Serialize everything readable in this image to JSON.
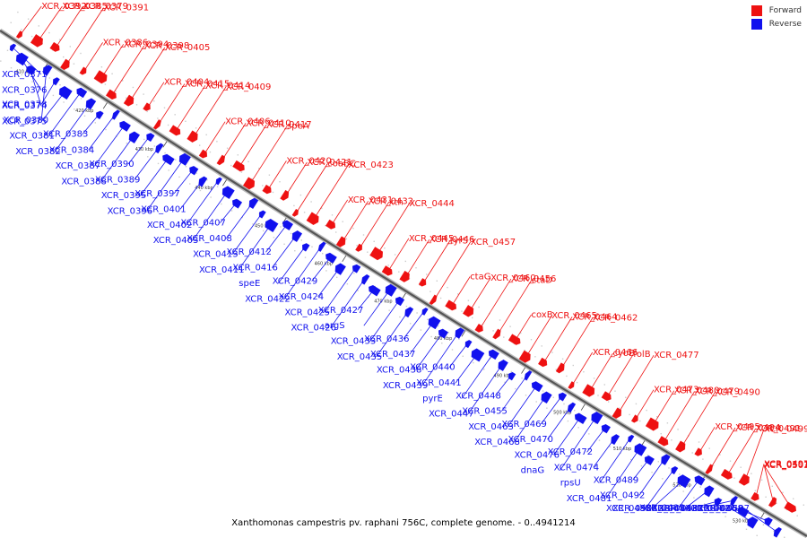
{
  "legend": {
    "forward": {
      "label": "Forward",
      "color": "#ee1111"
    },
    "reverse": {
      "label": "Reverse",
      "color": "#1111ee"
    }
  },
  "caption": "Xanthomonas campestris pv. raphani 756C, complete genome. - 0..4941214",
  "ticks": [
    "410 kbp",
    "420 kbp",
    "430 kbp",
    "440 kbp",
    "450 kbp",
    "460 kbp",
    "470 kbp",
    "480 kbp",
    "490 kbp",
    "500 kbp",
    "510 kbp",
    "520 kbp",
    "530 kbp"
  ],
  "forward_labels": [
    "XCR_0392",
    "XCR_0385",
    "XCR_0379",
    "XCR_0391",
    "XCR_0386",
    "XCR_0394",
    "XCR_0398",
    "XCR_0405",
    "XCR_0404",
    "XCR_0415",
    "XCR_0414",
    "XCR_0409",
    "XCR_0406",
    "XCR_0410",
    "XCR_0417",
    "speA",
    "XCR_0420",
    "XCR_0421",
    "coaBC",
    "XCR_0423",
    "XCR_0431",
    "XCR_0432",
    "xth",
    "XCR_0444",
    "XCR_0445",
    "XCR_0446",
    "tyrS",
    "XCR_0457",
    "ctaG",
    "XCR_0460",
    "XCR_0456",
    "ctaD",
    "coxB",
    "XCR_0465",
    "XCR_0464",
    "XCR_0462",
    "XCR_0466",
    "cyoE",
    "folB",
    "XCR_0477",
    "XCR_0473",
    "XCR_0480",
    "XCR_0479",
    "XCR_0490",
    "XCR_0495",
    "XCR_0494",
    "XCR_0491",
    "XCR_0499",
    "XCR_0497",
    "XCR_0501",
    "XCR_0503"
  ],
  "reverse_labels": [
    "XCR_0371",
    "XCR_0376",
    "XCR_0374",
    "XCR_0375",
    "XCR_0378",
    "XCR_0380",
    "XCR_0381",
    "XCR_0382",
    "XCR_0383",
    "XCR_0384",
    "XCR_0387",
    "XCR_0388",
    "XCR_0390",
    "XCR_0389",
    "XCR_0395",
    "XCR_0396",
    "XCR_0397",
    "XCR_0401",
    "XCR_0402",
    "XCR_0403",
    "XCR_0407",
    "XCR_0408",
    "XCR_0413",
    "XCR_0411",
    "XCR_0412",
    "XCR_0416",
    "speE",
    "XCR_0422",
    "XCR_0429",
    "XCR_0424",
    "XCR_0425",
    "XCR_0426",
    "XCR_0427",
    "argS",
    "XCR_0433",
    "XCR_0435",
    "XCR_0436",
    "XCR_0437",
    "XCR_0438",
    "XCR_0439",
    "XCR_0440",
    "XCR_0441",
    "pyrE",
    "XCR_0447",
    "XCR_0448",
    "XCR_0455",
    "XCR_0463",
    "XCR_0468",
    "XCR_0469",
    "XCR_0470",
    "XCR_0476",
    "dnaG",
    "XCR_0472",
    "XCR_0474",
    "rpsU",
    "XCR_0481",
    "XCR_0489",
    "XCR_0492",
    "XCR_0493",
    "XCR_0504",
    "XCR_0485",
    "XCR_0484",
    "XCR_0483",
    "XCR_0487",
    "XCR_0482",
    "XCR_0486",
    "XCR_0488",
    "XCR_0507"
  ]
}
